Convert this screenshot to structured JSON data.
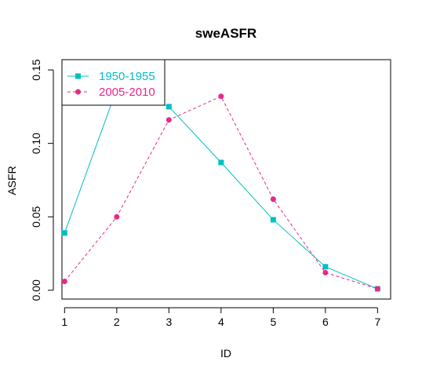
{
  "chart_data": {
    "type": "line",
    "title": "sweASFR",
    "xlabel": "ID",
    "ylabel": "ASFR",
    "x": [
      1,
      2,
      3,
      4,
      5,
      6,
      7
    ],
    "xticks": [
      "1",
      "2",
      "3",
      "4",
      "5",
      "6",
      "7"
    ],
    "yticks": [
      "0.00",
      "0.05",
      "0.10",
      "0.15"
    ],
    "xlim": [
      0.95,
      7.25
    ],
    "ylim": [
      -0.006,
      0.157
    ],
    "grid": false,
    "legend_position": "top-left",
    "series": [
      {
        "name": "1950-1955",
        "color": "#00BFC4",
        "marker": "square",
        "line": "solid",
        "values": [
          0.039,
          0.137,
          0.125,
          0.087,
          0.048,
          0.016,
          0.001
        ]
      },
      {
        "name": "2005-2010",
        "color": "#E7298A",
        "marker": "circle",
        "line": "dashed",
        "values": [
          0.006,
          0.05,
          0.116,
          0.132,
          0.062,
          0.012,
          0.001
        ]
      }
    ]
  }
}
